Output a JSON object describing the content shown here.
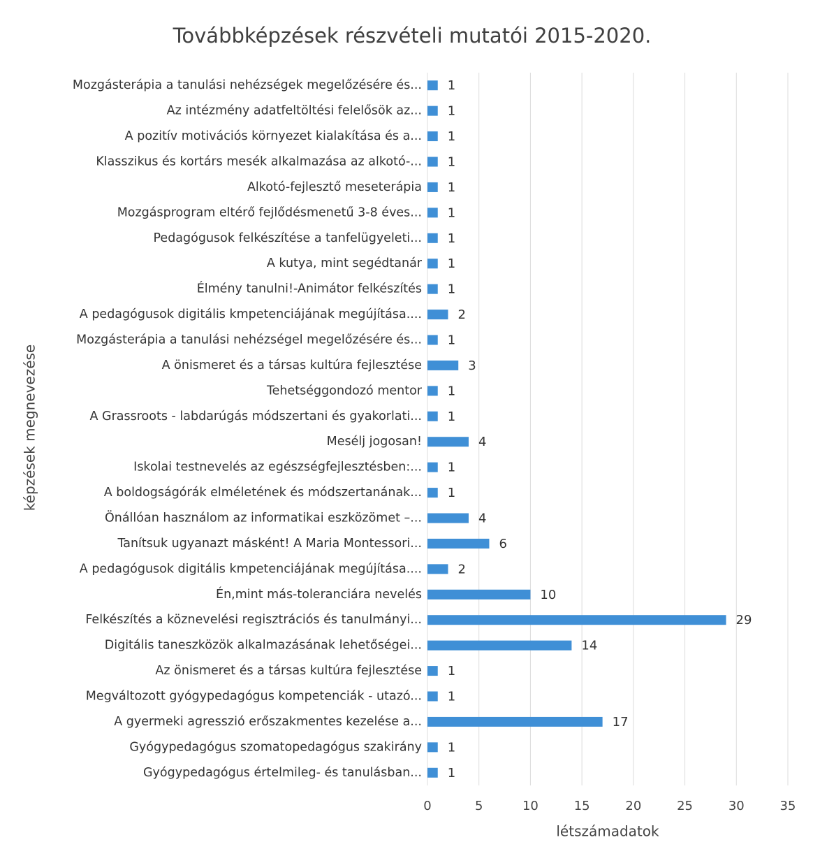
{
  "chart_data": {
    "type": "barh",
    "title": "Továbbképzések részvételi mutatói 2015-2020.",
    "xlabel": "létszámadatok",
    "ylabel": "képzések megnevezése",
    "categories": [
      "Mozgásterápia a tanulási nehézségek megelőzésére és...",
      "Az intézmény adatfeltöltési felelősök az...",
      "A pozitív motivációs környezet kialakítása és a...",
      "Klasszikus és kortárs mesék alkalmazása az alkotó-...",
      "Alkotó-fejlesztő meseterápia",
      "Mozgásprogram eltérő fejlődésmenetű 3-8 éves...",
      "Pedagógusok felkészítése a tanfelügyeleti...",
      "A kutya, mint segédtanár",
      "Élmény tanulni!-Animátor felkészítés",
      "A pedagógusok digitális kmpetenciájának megújítása....",
      "Mozgásterápia a tanulási nehézségel megelőzésére és...",
      "A önismeret és a társas kultúra fejlesztése",
      "Tehetséggondozó mentor",
      "A Grassroots - labdarúgás módszertani és gyakorlati...",
      "Mesélj jogosan!",
      "Iskolai testnevelés az egészségfejlesztésben:...",
      "A boldogságórák elméletének és módszertanának...",
      "Önállóan használom az informatikai eszközömet –...",
      "Tanítsuk ugyanazt másként! A Maria Montessori...",
      "A pedagógusok digitális kmpetenciájának megújítása....",
      "Én,mint más-toleranciára nevelés",
      "Felkészítés a köznevelési regisztrációs és tanulmányi...",
      "Digitális taneszközök alkalmazásának lehetőségei...",
      "Az önismeret és a társas kultúra fejlesztése",
      "Megváltozott gyógypedagógus kompetenciák - utazó...",
      "A gyermeki agresszió erőszakmentes kezelése a...",
      "Gyógypedagógus szomatopedagógus szakirány",
      "Gyógypedagógus értelmileg- és tanulásban..."
    ],
    "values": [
      1,
      1,
      1,
      1,
      1,
      1,
      1,
      1,
      1,
      2,
      1,
      3,
      1,
      1,
      4,
      1,
      1,
      4,
      6,
      2,
      10,
      29,
      14,
      1,
      1,
      17,
      1,
      1
    ],
    "color": "#3f8fd6",
    "xlim": [
      0,
      35
    ],
    "xticks": [
      0,
      5,
      10,
      15,
      20,
      25,
      30,
      35
    ],
    "grid": true
  }
}
